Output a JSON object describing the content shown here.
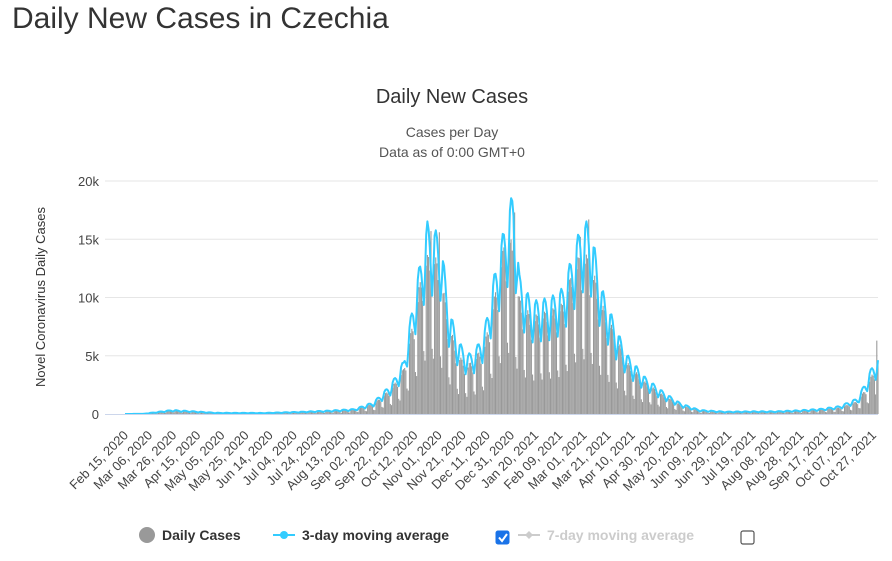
{
  "page": {
    "title": "Daily New Cases in Czechia"
  },
  "legend": {
    "daily_cases": "Daily Cases",
    "avg3": "3-day moving average",
    "avg7": "7-day moving average",
    "avg3_checked": true,
    "avg7_checked": false
  },
  "colors": {
    "bars": "#999999",
    "avg3": "#33ccff",
    "avg7_disabled": "#cccccc",
    "grid": "#e6e6e6",
    "checkbox": "#1a73e8"
  },
  "chart_data": {
    "type": "bar",
    "title": "Daily New Cases",
    "subtitle_lines": [
      "Cases per Day",
      "Data as of 0:00 GMT+0"
    ],
    "ylabel": "Novel Coronavirus Daily Cases",
    "ylim": [
      0,
      20000
    ],
    "yticks": [
      {
        "value": 0,
        "label": "0"
      },
      {
        "value": 5000,
        "label": "5k"
      },
      {
        "value": 10000,
        "label": "10k"
      },
      {
        "value": 15000,
        "label": "15k"
      },
      {
        "value": 20000,
        "label": "20k"
      }
    ],
    "x_start_date": "2020-02-15",
    "x_end_date": "2021-11-06",
    "x_tick_labels": [
      "Feb 15, 2020",
      "Mar 06, 2020",
      "Mar 26, 2020",
      "Apr 15, 2020",
      "May 05, 2020",
      "May 25, 2020",
      "Jun 14, 2020",
      "Jul 04, 2020",
      "Jul 24, 2020",
      "Aug 13, 2020",
      "Sep 02, 2020",
      "Sep 22, 2020",
      "Oct 12, 2020",
      "Nov 01, 2020",
      "Nov 21, 2020",
      "Dec 11, 2020",
      "Dec 31, 2020",
      "Jan 20, 2021",
      "Feb 09, 2021",
      "Mar 01, 2021",
      "Mar 21, 2021",
      "Apr 10, 2021",
      "Apr 30, 2021",
      "May 20, 2021",
      "Jun 09, 2021",
      "Jun 29, 2021",
      "Jul 19, 2021",
      "Aug 08, 2021",
      "Aug 28, 2021",
      "Sep 17, 2021",
      "Oct 07, 2021",
      "Oct 27, 2021"
    ],
    "series": [
      {
        "name": "Daily Cases",
        "approx_daily_by_date": [
          [
            "2020-02-15",
            0
          ],
          [
            "2020-03-01",
            5
          ],
          [
            "2020-03-20",
            250
          ],
          [
            "2020-03-27",
            380
          ],
          [
            "2020-04-10",
            200
          ],
          [
            "2020-04-30",
            80
          ],
          [
            "2020-06-01",
            70
          ],
          [
            "2020-07-01",
            120
          ],
          [
            "2020-07-10",
            180
          ],
          [
            "2020-08-01",
            230
          ],
          [
            "2020-08-25",
            350
          ],
          [
            "2020-09-10",
            800
          ],
          [
            "2020-09-25",
            2000
          ],
          [
            "2020-10-05",
            3500
          ],
          [
            "2020-10-15",
            8000
          ],
          [
            "2020-10-22",
            12000
          ],
          [
            "2020-10-30",
            12500
          ],
          [
            "2020-11-05",
            11000
          ],
          [
            "2020-11-12",
            7000
          ],
          [
            "2020-11-20",
            4500
          ],
          [
            "2020-11-28",
            3800
          ],
          [
            "2020-12-05",
            4500
          ],
          [
            "2020-12-12",
            5500
          ],
          [
            "2020-12-20",
            9000
          ],
          [
            "2020-12-28",
            13000
          ],
          [
            "2021-01-02",
            14000
          ],
          [
            "2021-01-10",
            9000
          ],
          [
            "2021-01-20",
            7500
          ],
          [
            "2021-02-05",
            8000
          ],
          [
            "2021-02-15",
            8500
          ],
          [
            "2021-02-25",
            11500
          ],
          [
            "2021-03-03",
            12500
          ],
          [
            "2021-03-10",
            12000
          ],
          [
            "2021-03-20",
            8500
          ],
          [
            "2021-04-01",
            6000
          ],
          [
            "2021-04-10",
            4000
          ],
          [
            "2021-04-25",
            2500
          ],
          [
            "2021-05-10",
            1500
          ],
          [
            "2021-05-25",
            700
          ],
          [
            "2021-06-10",
            250
          ],
          [
            "2021-07-01",
            150
          ],
          [
            "2021-07-20",
            180
          ],
          [
            "2021-08-10",
            180
          ],
          [
            "2021-09-01",
            250
          ],
          [
            "2021-09-20",
            350
          ],
          [
            "2021-10-05",
            500
          ],
          [
            "2021-10-20",
            1000
          ],
          [
            "2021-10-27",
            2000
          ],
          [
            "2021-11-03",
            3500
          ],
          [
            "2021-11-06",
            4200
          ]
        ],
        "notable_peak_days": [
          [
            "2020-10-28",
            15700
          ],
          [
            "2020-11-04",
            15600
          ],
          [
            "2020-12-29",
            14000
          ],
          [
            "2021-01-05",
            17600
          ],
          [
            "2021-01-06",
            17300
          ],
          [
            "2021-03-02",
            15200
          ],
          [
            "2021-03-09",
            16700
          ],
          [
            "2021-11-05",
            6300
          ]
        ]
      },
      {
        "name": "3-day moving average",
        "approx_by_date": [
          [
            "2020-02-15",
            0
          ],
          [
            "2020-03-01",
            10
          ],
          [
            "2020-03-25",
            300
          ],
          [
            "2020-04-10",
            220
          ],
          [
            "2020-05-01",
            90
          ],
          [
            "2020-06-10",
            80
          ],
          [
            "2020-07-05",
            150
          ],
          [
            "2020-08-01",
            250
          ],
          [
            "2020-08-25",
            380
          ],
          [
            "2020-09-10",
            900
          ],
          [
            "2020-09-25",
            2300
          ],
          [
            "2020-10-05",
            4000
          ],
          [
            "2020-10-15",
            9500
          ],
          [
            "2020-10-25",
            14500
          ],
          [
            "2020-10-30",
            14000
          ],
          [
            "2020-11-05",
            13500
          ],
          [
            "2020-11-12",
            8000
          ],
          [
            "2020-11-20",
            5500
          ],
          [
            "2020-11-28",
            4500
          ],
          [
            "2020-12-05",
            5000
          ],
          [
            "2020-12-12",
            6500
          ],
          [
            "2020-12-20",
            10500
          ],
          [
            "2020-12-28",
            14000
          ],
          [
            "2021-01-05",
            17000
          ],
          [
            "2021-01-10",
            10500
          ],
          [
            "2021-01-20",
            8500
          ],
          [
            "2021-02-05",
            8800
          ],
          [
            "2021-02-15",
            9500
          ],
          [
            "2021-02-25",
            12500
          ],
          [
            "2021-03-03",
            14500
          ],
          [
            "2021-03-10",
            14500
          ],
          [
            "2021-03-20",
            9500
          ],
          [
            "2021-04-01",
            6500
          ],
          [
            "2021-04-10",
            4500
          ],
          [
            "2021-04-25",
            2800
          ],
          [
            "2021-05-10",
            1700
          ],
          [
            "2021-05-25",
            800
          ],
          [
            "2021-06-10",
            300
          ],
          [
            "2021-07-01",
            180
          ],
          [
            "2021-07-20",
            200
          ],
          [
            "2021-08-10",
            200
          ],
          [
            "2021-09-01",
            280
          ],
          [
            "2021-09-20",
            400
          ],
          [
            "2021-10-05",
            600
          ],
          [
            "2021-10-20",
            1200
          ],
          [
            "2021-10-27",
            2500
          ],
          [
            "2021-11-03",
            4000
          ],
          [
            "2021-11-06",
            4200
          ]
        ]
      }
    ]
  }
}
